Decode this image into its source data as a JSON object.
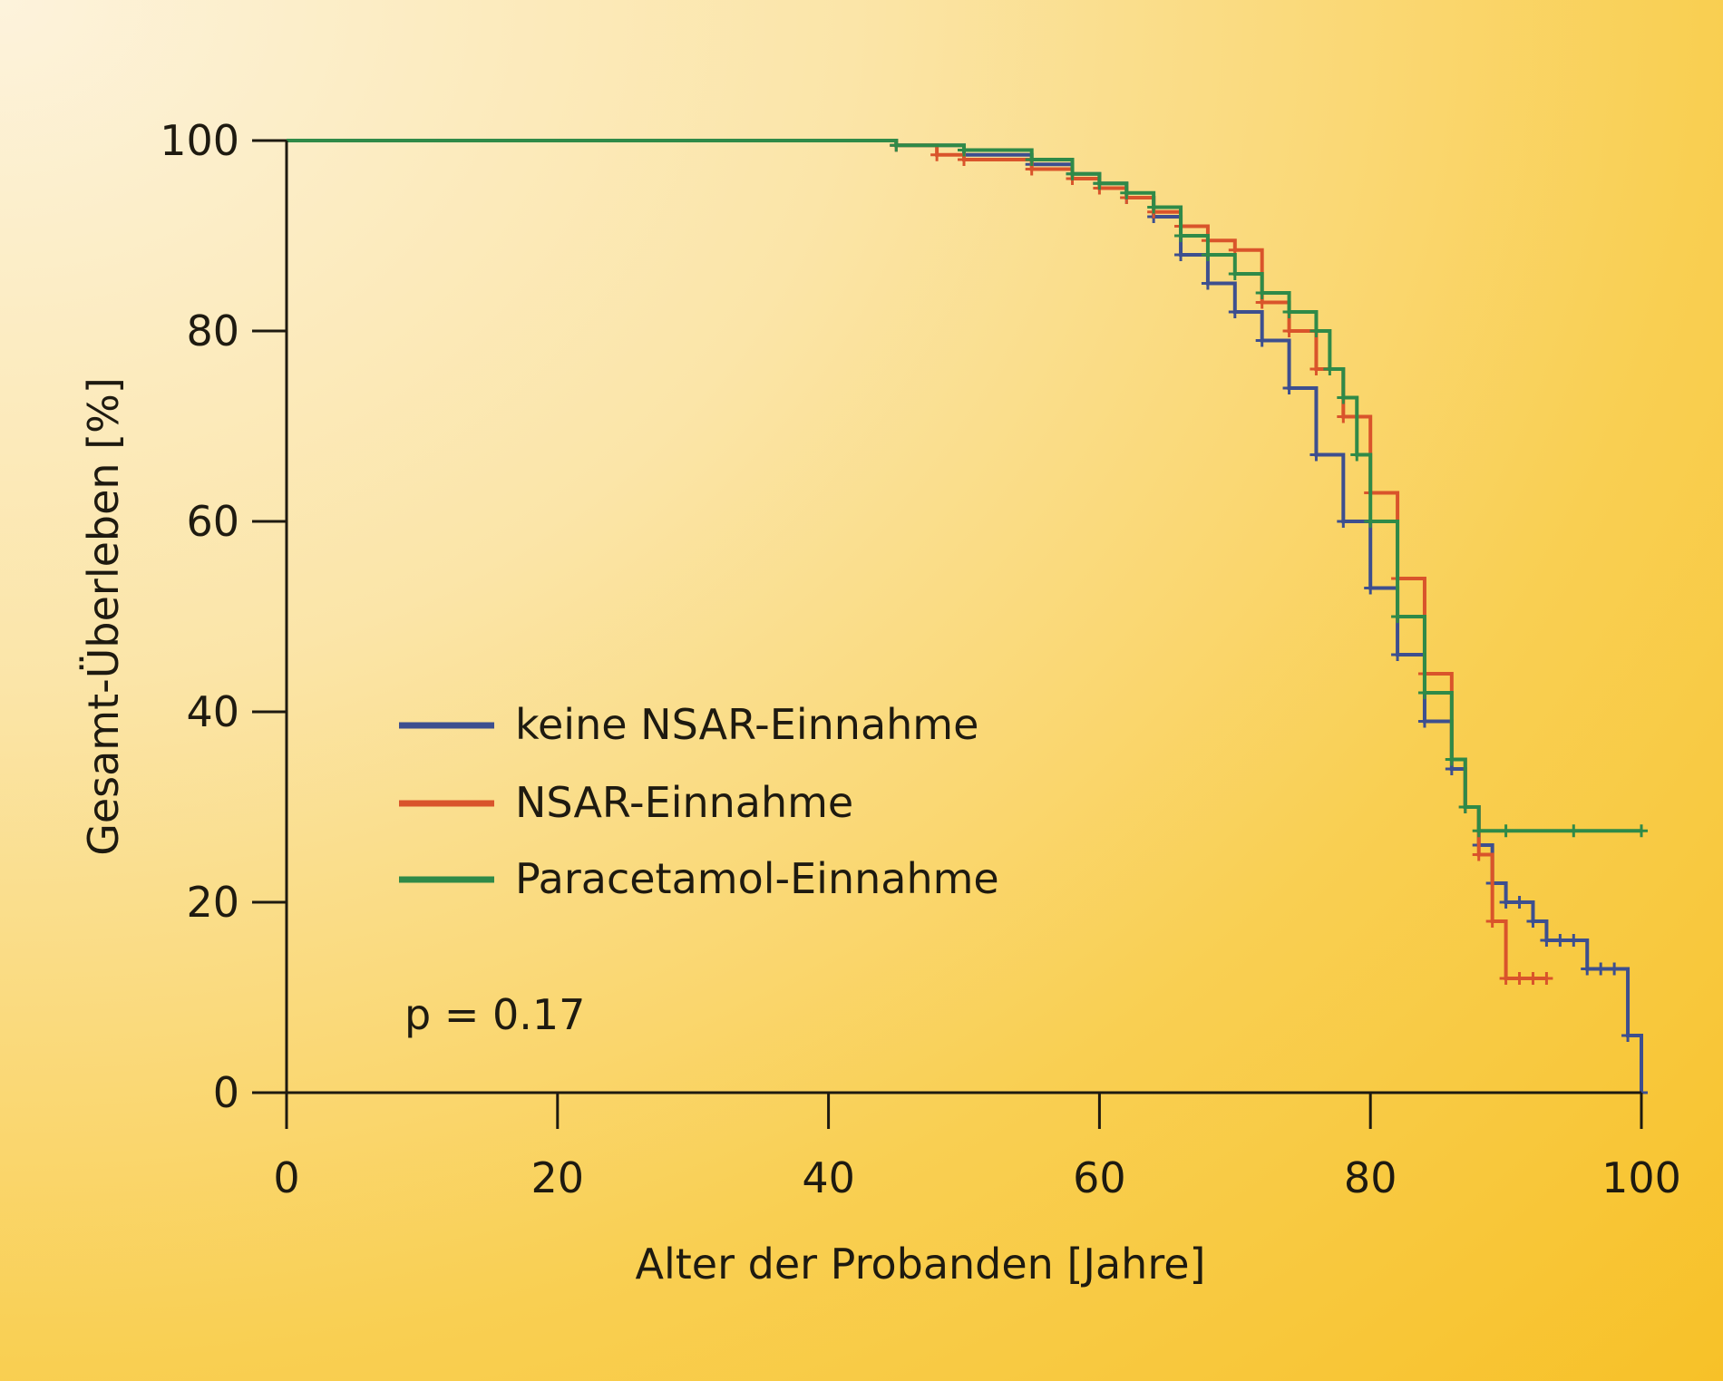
{
  "chart_data": {
    "type": "line",
    "xlabel": "Alter der Probanden [Jahre]",
    "ylabel": "Gesamt-Überleben [%]",
    "xlim": [
      0,
      100
    ],
    "ylim": [
      0,
      100
    ],
    "x_ticks": [
      0,
      20,
      40,
      60,
      80,
      100
    ],
    "y_ticks": [
      0,
      20,
      40,
      60,
      80,
      100
    ],
    "x_tick_labels": [
      "0",
      "20",
      "40",
      "60",
      "80",
      "100"
    ],
    "y_tick_labels": [
      "0",
      "20",
      "40",
      "60",
      "80",
      "100"
    ],
    "grid": false,
    "legend_position": "middle-left",
    "annotation": "p = 0.17",
    "series": [
      {
        "name": "keine NSAR-Einnahme",
        "color": "#3d4f8f",
        "x": [
          0,
          40,
          45,
          50,
          55,
          58,
          60,
          62,
          64,
          66,
          68,
          70,
          72,
          74,
          76,
          78,
          80,
          82,
          84,
          86,
          87,
          88,
          89,
          90,
          91,
          92,
          93,
          94,
          95,
          96,
          97,
          98,
          99,
          100
        ],
        "y": [
          100,
          100,
          99.5,
          98.5,
          97.5,
          96.5,
          95.5,
          94,
          92,
          88,
          85,
          82,
          79,
          74,
          67,
          60,
          53,
          46,
          39,
          34,
          30,
          26,
          22,
          20,
          20,
          18,
          16,
          16,
          16,
          13,
          13,
          13,
          6,
          0
        ]
      },
      {
        "name": "NSAR-Einnahme",
        "color": "#d9542b",
        "x": [
          40,
          45,
          48,
          50,
          55,
          58,
          60,
          62,
          64,
          66,
          68,
          70,
          72,
          74,
          76,
          78,
          80,
          82,
          84,
          86,
          87,
          88,
          89,
          90,
          91,
          92,
          93
        ],
        "y": [
          100,
          99.5,
          98.5,
          98,
          97,
          96,
          95,
          94,
          92.5,
          91,
          89.5,
          88.5,
          83,
          80,
          76,
          71,
          63,
          54,
          44,
          35,
          30,
          25,
          18,
          12,
          12,
          12,
          12
        ]
      },
      {
        "name": "Paracetamol-Einnahme",
        "color": "#2f8a48",
        "x": [
          0,
          40,
          45,
          50,
          55,
          58,
          60,
          62,
          64,
          66,
          68,
          70,
          72,
          74,
          76,
          77,
          78,
          79,
          80,
          82,
          84,
          86,
          87,
          88,
          90,
          95,
          100
        ],
        "y": [
          100,
          100,
          99.5,
          99,
          98,
          96.5,
          95.5,
          94.5,
          93,
          90,
          88,
          86,
          84,
          82,
          80,
          76,
          73,
          67,
          60,
          50,
          42,
          35,
          30,
          27.5,
          27.5,
          27.5,
          27.5
        ]
      }
    ]
  }
}
